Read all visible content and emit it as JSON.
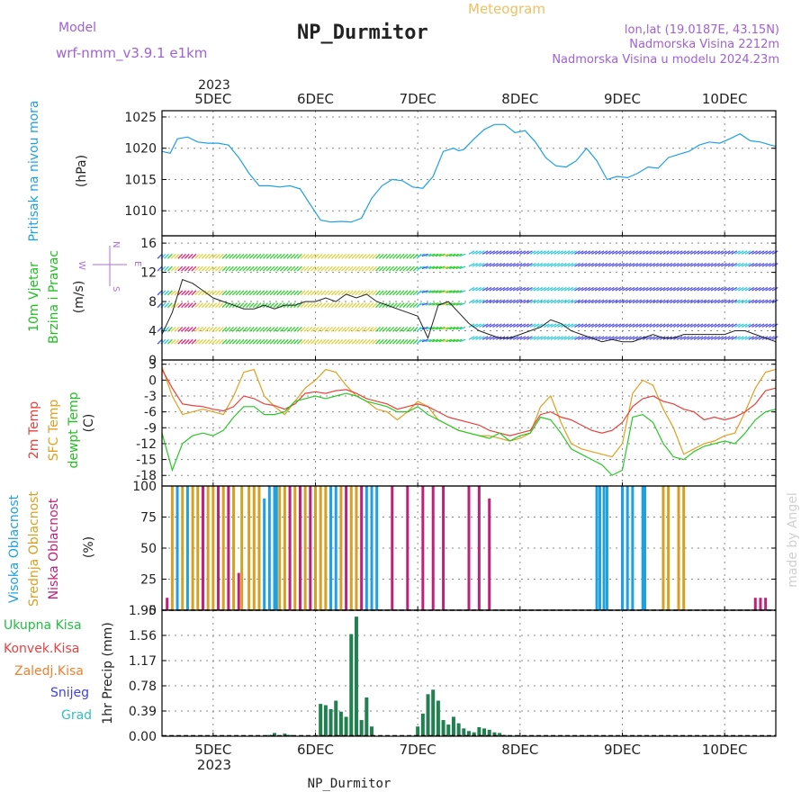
{
  "header": {
    "model_label": "Model",
    "model_name": "wrf-nmm_v3.9.1  e1km",
    "station": "NP_Durmitor",
    "product": "Meteogram",
    "lonlat": "lon,lat (19.0187E, 43.15N)",
    "elevation": "Nadmorska Visina 2212m",
    "model_elevation": "Nadmorska Visina u modelu 2024.23m",
    "year_top": "2023",
    "watermark": "made by Angel"
  },
  "footer": {
    "station": "NP_Durmitor",
    "year_bottom": "2023"
  },
  "x_axis": {
    "labels": [
      "5DEC",
      "6DEC",
      "7DEC",
      "8DEC",
      "9DEC",
      "10DEC"
    ],
    "day_positions": [
      0.5,
      1.5,
      2.5,
      3.5,
      4.5,
      5.5
    ],
    "range": [
      0,
      6.0
    ]
  },
  "colors": {
    "pressure": "#1ea0e6",
    "t2m": "#e8403a",
    "sfc": "#e0a020",
    "dew": "#28c828",
    "high_cloud": "#1ea0e6",
    "mid_cloud": "#d8a020",
    "low_cloud": "#c0207a",
    "precip_total": "#208050",
    "precip_conv": "#e84040",
    "precip_frz": "#f08030",
    "snow": "#4040e0",
    "graupel": "#30c0c0"
  },
  "panels": {
    "pressure": {
      "label_main": "Pritisak na nivou mora",
      "unit": "(hPa)"
    },
    "wind": {
      "label_a": "10m Vjetar",
      "label_b": "Brzina i Pravac",
      "unit": "(m/s)",
      "compass": [
        "N",
        "E",
        "W",
        "S"
      ]
    },
    "temp": {
      "label_t2m": "2m Temp",
      "label_sfc": "SFC Temp",
      "label_dew": "dewpt Temp",
      "unit": "(C)"
    },
    "cloud": {
      "label_high": "Visoka Oblacnost",
      "label_mid": "Srednja Oblacnost",
      "label_low": "Niska Oblacnost",
      "unit": "(%)"
    },
    "precip": {
      "legend": [
        "Ukupna Kisa",
        "Konvek.Kisa",
        "Zaledj.Kisa",
        "Snijeg",
        "Grad"
      ],
      "ylabel": "1hr Precip (mm)"
    }
  },
  "chart_data": [
    {
      "type": "line",
      "ylabel": "(hPa)",
      "ylim": [
        1006,
        1026
      ],
      "yticks": [
        1010,
        1015,
        1020,
        1025
      ],
      "grid": true,
      "series": [
        {
          "name": "Pritisak na nivou mora",
          "x": [
            0,
            0.08,
            0.15,
            0.25,
            0.35,
            0.45,
            0.55,
            0.65,
            0.75,
            0.85,
            0.95,
            1.05,
            1.15,
            1.25,
            1.35,
            1.45,
            1.55,
            1.65,
            1.75,
            1.85,
            1.95,
            2.05,
            2.15,
            2.25,
            2.35,
            2.45,
            2.55,
            2.65,
            2.75,
            2.85,
            2.9,
            2.95,
            3.05,
            3.15,
            3.25,
            3.35,
            3.45,
            3.55,
            3.65,
            3.75,
            3.85,
            3.95,
            4.05,
            4.15,
            4.25,
            4.35,
            4.45,
            4.55,
            4.65,
            4.75,
            4.85,
            4.95,
            5.05,
            5.15,
            5.25,
            5.35,
            5.45,
            5.55,
            5.65,
            5.75,
            5.85,
            5.95,
            6.0
          ],
          "values": [
            1019.5,
            1019.2,
            1021.5,
            1021.8,
            1021.0,
            1020.8,
            1020.8,
            1020.5,
            1018.5,
            1016.0,
            1014.0,
            1014.0,
            1013.8,
            1014.0,
            1013.5,
            1011.0,
            1008.5,
            1008.2,
            1008.3,
            1008.2,
            1008.8,
            1012.0,
            1014.0,
            1015.0,
            1014.8,
            1013.8,
            1013.6,
            1015.5,
            1019.5,
            1020.0,
            1019.6,
            1019.8,
            1021.5,
            1023.0,
            1023.8,
            1023.8,
            1022.5,
            1022.8,
            1021.0,
            1018.5,
            1017.2,
            1017.0,
            1018.0,
            1020.0,
            1018.0,
            1015.0,
            1015.5,
            1015.3,
            1016.0,
            1017.0,
            1016.8,
            1018.5,
            1019.0,
            1019.5,
            1020.5,
            1021.0,
            1020.8,
            1021.5,
            1022.3,
            1021.2,
            1021.0,
            1020.5,
            1020.3
          ]
        }
      ]
    },
    {
      "type": "line",
      "ylabel": "(m/s)",
      "ylim": [
        0,
        17
      ],
      "yticks": [
        0,
        4,
        8,
        12,
        16
      ],
      "yticklabels": [
        "0",
        "4",
        "8",
        "12",
        "16"
      ],
      "grid": true,
      "series": [
        {
          "name": "10m Vjetar",
          "x": [
            0,
            0.1,
            0.2,
            0.3,
            0.4,
            0.5,
            0.6,
            0.7,
            0.8,
            0.9,
            1.0,
            1.1,
            1.2,
            1.3,
            1.4,
            1.5,
            1.6,
            1.7,
            1.8,
            1.9,
            2.0,
            2.1,
            2.2,
            2.3,
            2.4,
            2.5,
            2.6,
            2.7,
            2.8,
            2.9,
            3.0,
            3.1,
            3.2,
            3.3,
            3.4,
            3.5,
            3.6,
            3.7,
            3.8,
            3.9,
            4.0,
            4.1,
            4.2,
            4.3,
            4.4,
            4.5,
            4.6,
            4.7,
            4.8,
            4.9,
            5.0,
            5.1,
            5.2,
            5.3,
            5.4,
            5.5,
            5.6,
            5.7,
            5.8,
            5.9,
            6.0
          ],
          "values": [
            3.5,
            6.5,
            11.0,
            10.5,
            9.5,
            8.5,
            8.0,
            7.5,
            7.0,
            7.0,
            7.5,
            7.0,
            7.5,
            7.5,
            8.0,
            8.0,
            8.5,
            8.0,
            9.0,
            8.5,
            9.0,
            8.0,
            7.5,
            7.0,
            6.5,
            6.0,
            3.0,
            7.5,
            8.0,
            6.5,
            5.0,
            4.0,
            3.5,
            3.0,
            3.0,
            3.5,
            4.0,
            4.5,
            5.5,
            5.0,
            4.0,
            3.5,
            3.0,
            2.5,
            2.8,
            2.5,
            2.5,
            3.0,
            3.5,
            3.0,
            3.0,
            3.5,
            3.5,
            3.5,
            3.5,
            3.5,
            4.0,
            4.0,
            3.5,
            3.0,
            2.5
          ]
        }
      ]
    },
    {
      "type": "line",
      "ylabel": "(C)",
      "ylim": [
        -20,
        3.8
      ],
      "yticks": [
        -18,
        -15,
        -12,
        -9,
        -6,
        -3,
        0,
        3
      ],
      "grid": true,
      "series": [
        {
          "name": "2m Temp",
          "x": [
            0,
            0.1,
            0.2,
            0.3,
            0.4,
            0.5,
            0.6,
            0.7,
            0.8,
            0.9,
            1.0,
            1.1,
            1.2,
            1.3,
            1.4,
            1.5,
            1.6,
            1.7,
            1.8,
            1.9,
            2.0,
            2.1,
            2.2,
            2.3,
            2.4,
            2.5,
            2.6,
            2.7,
            2.8,
            2.9,
            3.0,
            3.1,
            3.2,
            3.3,
            3.4,
            3.5,
            3.6,
            3.7,
            3.8,
            3.9,
            4.0,
            4.1,
            4.2,
            4.3,
            4.4,
            4.5,
            4.6,
            4.7,
            4.8,
            4.9,
            5.0,
            5.1,
            5.2,
            5.3,
            5.4,
            5.5,
            5.6,
            5.7,
            5.8,
            5.9,
            6.0
          ],
          "values": [
            2.0,
            -1.5,
            -4.5,
            -4.8,
            -5.0,
            -5.5,
            -5.8,
            -5.0,
            -3.0,
            -3.5,
            -4.5,
            -4.8,
            -5.5,
            -4.5,
            -2.5,
            -2.2,
            -2.5,
            -2.0,
            -1.8,
            -2.5,
            -3.5,
            -4.0,
            -4.5,
            -5.5,
            -5.0,
            -4.5,
            -5.0,
            -6.0,
            -7.0,
            -7.5,
            -8.0,
            -8.5,
            -9.5,
            -10.0,
            -10.5,
            -10.0,
            -9.5,
            -6.5,
            -6.0,
            -7.0,
            -7.5,
            -8.5,
            -9.5,
            -10.0,
            -9.5,
            -8.0,
            -5.0,
            -3.5,
            -3.0,
            -4.0,
            -4.5,
            -5.5,
            -6.0,
            -7.5,
            -7.0,
            -7.5,
            -7.0,
            -6.0,
            -4.5,
            -2.0,
            -1.5
          ]
        },
        {
          "name": "SFC Temp",
          "x": [
            0,
            0.1,
            0.2,
            0.3,
            0.4,
            0.5,
            0.6,
            0.7,
            0.8,
            0.9,
            1.0,
            1.1,
            1.2,
            1.3,
            1.4,
            1.5,
            1.6,
            1.7,
            1.8,
            1.9,
            2.0,
            2.1,
            2.2,
            2.3,
            2.4,
            2.5,
            2.6,
            2.7,
            2.8,
            2.9,
            3.0,
            3.1,
            3.2,
            3.3,
            3.4,
            3.5,
            3.6,
            3.7,
            3.8,
            3.9,
            4.0,
            4.1,
            4.2,
            4.3,
            4.4,
            4.5,
            4.6,
            4.7,
            4.8,
            4.9,
            5.0,
            5.1,
            5.2,
            5.3,
            5.4,
            5.5,
            5.6,
            5.7,
            5.8,
            5.9,
            6.0
          ],
          "values": [
            2.5,
            -3.0,
            -6.5,
            -6.0,
            -5.5,
            -6.0,
            -6.5,
            -3.0,
            1.5,
            2.0,
            -3.0,
            -5.0,
            -6.5,
            -4.0,
            -1.5,
            0.0,
            2.0,
            1.5,
            -1.0,
            -3.0,
            -4.0,
            -5.5,
            -6.0,
            -7.5,
            -6.0,
            -4.0,
            -5.0,
            -7.5,
            -8.5,
            -9.5,
            -10.0,
            -10.5,
            -10.5,
            -11.0,
            -11.5,
            -11.0,
            -10.0,
            -5.0,
            -3.0,
            -8.0,
            -12.0,
            -13.0,
            -13.5,
            -14.0,
            -14.5,
            -12.0,
            -2.5,
            0.0,
            -1.0,
            -5.5,
            -9.0,
            -14.0,
            -13.0,
            -12.0,
            -11.5,
            -10.5,
            -10.0,
            -6.0,
            -1.5,
            1.5,
            2.0
          ]
        },
        {
          "name": "dewpt Temp",
          "x": [
            0,
            0.1,
            0.2,
            0.3,
            0.4,
            0.5,
            0.6,
            0.7,
            0.8,
            0.9,
            1.0,
            1.1,
            1.2,
            1.3,
            1.4,
            1.5,
            1.6,
            1.7,
            1.8,
            1.9,
            2.0,
            2.1,
            2.2,
            2.3,
            2.4,
            2.5,
            2.6,
            2.7,
            2.8,
            2.9,
            3.0,
            3.1,
            3.2,
            3.3,
            3.4,
            3.5,
            3.6,
            3.7,
            3.8,
            3.9,
            4.0,
            4.1,
            4.2,
            4.3,
            4.4,
            4.5,
            4.6,
            4.7,
            4.8,
            4.9,
            5.0,
            5.1,
            5.2,
            5.3,
            5.4,
            5.5,
            5.6,
            5.7,
            5.8,
            5.9,
            6.0
          ],
          "values": [
            -10.0,
            -17.0,
            -12.0,
            -10.5,
            -10.0,
            -10.5,
            -9.5,
            -7.0,
            -5.0,
            -5.0,
            -6.5,
            -6.5,
            -6.0,
            -4.0,
            -3.5,
            -3.0,
            -3.5,
            -3.0,
            -2.5,
            -3.0,
            -4.0,
            -4.5,
            -5.0,
            -6.0,
            -6.0,
            -5.0,
            -6.5,
            -7.5,
            -8.5,
            -9.5,
            -10.0,
            -10.5,
            -11.0,
            -10.0,
            -11.5,
            -10.5,
            -10.0,
            -7.0,
            -7.5,
            -10.0,
            -13.0,
            -14.0,
            -15.0,
            -16.0,
            -18.0,
            -17.0,
            -7.0,
            -6.5,
            -8.0,
            -12.0,
            -14.5,
            -15.0,
            -13.5,
            -12.5,
            -12.0,
            -11.5,
            -12.0,
            -10.0,
            -7.5,
            -6.0,
            -5.5
          ]
        }
      ]
    },
    {
      "type": "bar",
      "ylabel": "(%)",
      "ylim": [
        0,
        100
      ],
      "yticks": [
        0,
        25,
        50,
        75,
        100
      ],
      "grid": true,
      "series": [
        {
          "name": "Visoka Oblacnost",
          "x": [
            0.15,
            0.25,
            1.0,
            1.05,
            1.1,
            1.12,
            1.65,
            1.7,
            2.0,
            2.05,
            2.1,
            4.25,
            4.28,
            4.32,
            4.35,
            4.5,
            4.55,
            4.6,
            4.7,
            4.72
          ],
          "values": [
            100,
            100,
            90,
            100,
            100,
            100,
            100,
            100,
            100,
            100,
            100,
            100,
            100,
            100,
            100,
            100,
            100,
            100,
            100,
            100
          ]
        },
        {
          "name": "Srednja Oblacnost",
          "x": [
            0.1,
            0.2,
            0.3,
            0.35,
            0.45,
            0.5,
            0.6,
            0.7,
            0.78,
            0.85,
            0.9,
            0.95,
            1.15,
            1.2,
            1.3,
            1.4,
            1.5,
            1.55,
            1.6,
            1.75,
            1.85,
            1.9,
            4.9,
            4.95,
            5.05,
            5.1
          ],
          "values": [
            100,
            100,
            100,
            100,
            100,
            100,
            100,
            100,
            100,
            100,
            100,
            100,
            100,
            100,
            100,
            100,
            100,
            100,
            100,
            100,
            100,
            100,
            100,
            100,
            100,
            100
          ]
        },
        {
          "name": "Niska Oblacnost",
          "x": [
            0.05,
            0.4,
            0.55,
            0.65,
            0.75,
            1.25,
            1.35,
            1.45,
            1.8,
            1.95,
            2.25,
            2.4,
            2.55,
            2.65,
            2.75,
            3.0,
            3.1,
            3.2,
            5.8,
            5.85,
            5.9
          ],
          "values": [
            10,
            100,
            100,
            100,
            30,
            100,
            100,
            100,
            100,
            100,
            100,
            100,
            100,
            100,
            100,
            100,
            100,
            90,
            10,
            10,
            10
          ]
        }
      ]
    },
    {
      "type": "bar",
      "ylabel": "1hr Precip (mm)",
      "ylim": [
        0,
        1.95
      ],
      "yticks": [
        0,
        0.39,
        0.78,
        1.17,
        1.56,
        1.95
      ],
      "grid": true,
      "series": [
        {
          "name": "Ukupna Kisa",
          "x": [
            1.05,
            1.1,
            1.15,
            1.2,
            1.25,
            1.3,
            1.35,
            1.4,
            1.45,
            1.5,
            1.55,
            1.6,
            1.65,
            1.7,
            1.75,
            1.8,
            1.85,
            1.9,
            1.95,
            2.0,
            2.05,
            2.1,
            2.15,
            2.2,
            2.25,
            2.3,
            2.35,
            2.4,
            2.45,
            2.5,
            2.55,
            2.6,
            2.65,
            2.7,
            2.75,
            2.8,
            2.85,
            2.9,
            2.95,
            3.0,
            3.05,
            3.1,
            3.15,
            3.2,
            3.25,
            3.3,
            3.35
          ],
          "values": [
            0.02,
            0.05,
            0.0,
            0.04,
            0.02,
            0.0,
            0.0,
            0.0,
            0.0,
            0.0,
            0.5,
            0.48,
            0.42,
            0.55,
            0.38,
            0.3,
            1.58,
            1.85,
            0.25,
            0.6,
            0.15,
            0.0,
            0.0,
            0.0,
            0.0,
            0.0,
            0.0,
            0.0,
            0.0,
            0.15,
            0.35,
            0.65,
            0.72,
            0.55,
            0.25,
            0.18,
            0.3,
            0.2,
            0.12,
            0.08,
            0.06,
            0.14,
            0.12,
            0.1,
            0.06,
            0.05,
            0.02
          ]
        }
      ]
    }
  ]
}
